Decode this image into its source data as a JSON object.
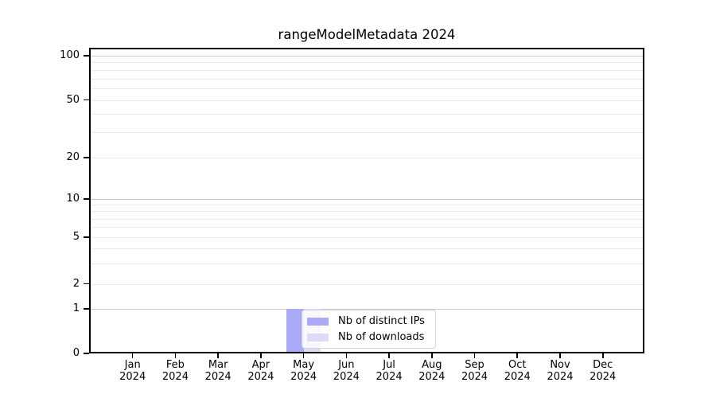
{
  "title": "rangeModelMetadata 2024",
  "chart_data": {
    "type": "bar",
    "title": "rangeModelMetadata 2024",
    "categories": [
      "Jan 2024",
      "Feb 2024",
      "Mar 2024",
      "Apr 2024",
      "May 2024",
      "Jun 2024",
      "Jul 2024",
      "Aug 2024",
      "Sep 2024",
      "Oct 2024",
      "Nov 2024",
      "Dec 2024"
    ],
    "series": [
      {
        "name": "Nb of distinct IPs",
        "color": "#aaaaf6",
        "values": [
          0,
          0,
          0,
          0,
          1,
          0,
          0,
          0,
          0,
          0,
          0,
          0
        ]
      },
      {
        "name": "Nb of downloads",
        "color": "#dcdcf8",
        "values": [
          0,
          0,
          0,
          0,
          1,
          0,
          0,
          0,
          0,
          0,
          0,
          0
        ]
      }
    ],
    "xlabel": "",
    "ylabel": "",
    "yscale": "symlog",
    "ylim": [
      0,
      110
    ],
    "ytick_labels": [
      "0",
      "1",
      "2",
      "5",
      "10",
      "20",
      "50",
      "100"
    ],
    "ytick_values": [
      0,
      1,
      2,
      5,
      10,
      20,
      50,
      100
    ],
    "grid_major_y": [
      1,
      10,
      100
    ],
    "grid_minor_y": [
      2,
      3,
      4,
      5,
      6,
      7,
      8,
      9,
      20,
      30,
      40,
      50,
      60,
      70,
      80,
      90
    ],
    "grid": "horizontal only",
    "legend_position": "inside lower-center",
    "colors": {
      "grid_major": "#c8c8c8",
      "grid_minor": "#eaeaea",
      "axis": "#000000",
      "background": "#ffffff"
    }
  }
}
